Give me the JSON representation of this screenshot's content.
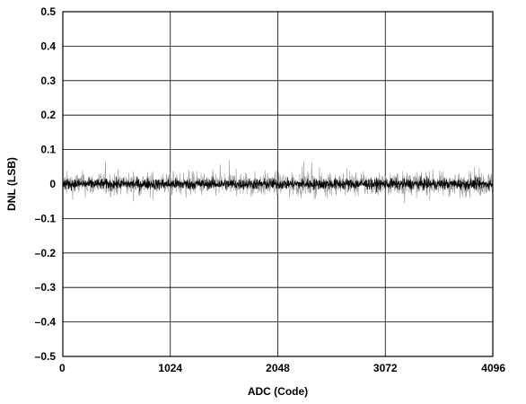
{
  "chart_data": {
    "type": "line",
    "title": "",
    "xlabel": "ADC (Code)",
    "ylabel": "DNL (LSB)",
    "xlim": [
      0,
      4096
    ],
    "ylim": [
      -0.5,
      0.5
    ],
    "grid": true,
    "legend": "none",
    "x_ticks": [
      0,
      1024,
      2048,
      3072,
      4096
    ],
    "x_tick_labels": [
      "0",
      "1024",
      "2048",
      "3072",
      "4096"
    ],
    "y_ticks": [
      0.5,
      0.4,
      0.3,
      0.2,
      0.1,
      0,
      -0.1,
      -0.2,
      -0.3,
      -0.4,
      -0.5
    ],
    "y_tick_labels": [
      "0.5",
      "0.4",
      "0.3",
      "0.2",
      "0.1",
      "0",
      "–0.1",
      "–0.2",
      "–0.3",
      "–0.4",
      "–0.5"
    ],
    "series": [
      {
        "color": "#000000",
        "x_range": [
          0,
          4096
        ],
        "mean": 0.0,
        "approx_band": [
          -0.02,
          0.02
        ],
        "approx_peak_range": [
          -0.07,
          0.07
        ]
      }
    ]
  }
}
